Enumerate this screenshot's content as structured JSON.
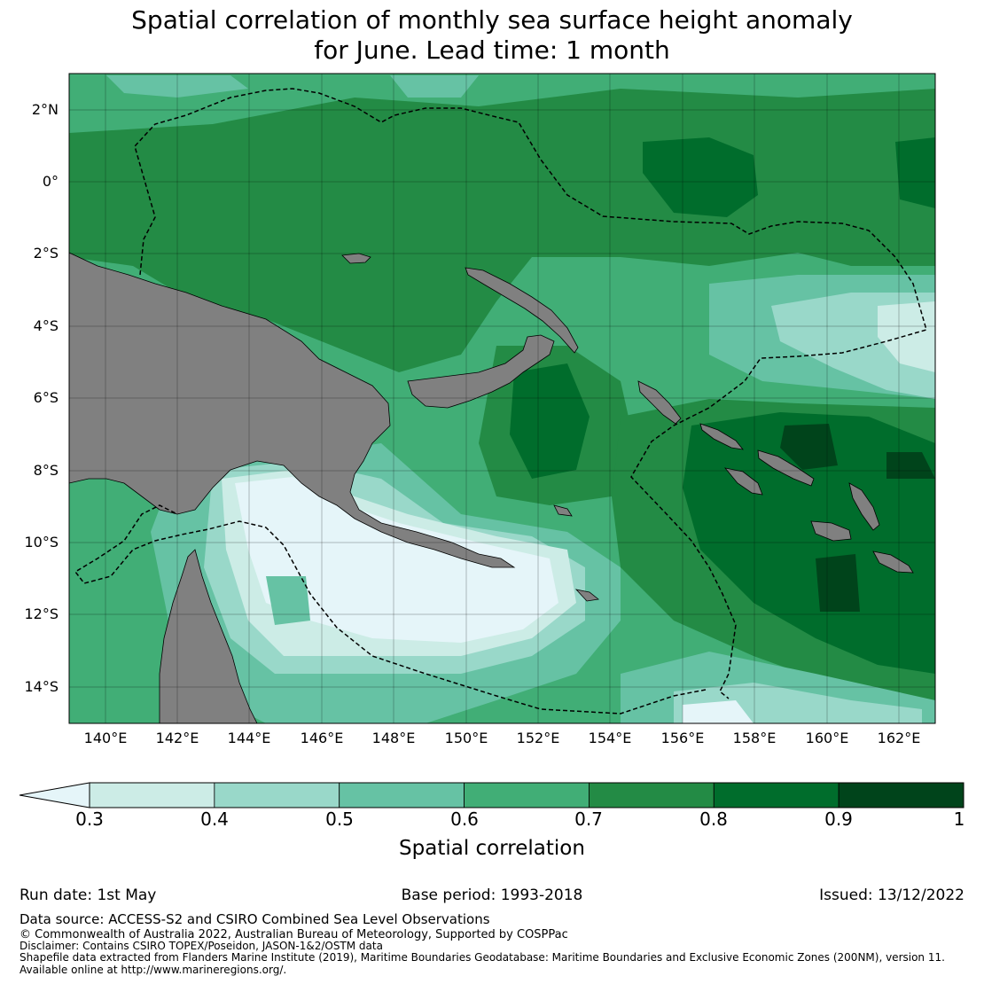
{
  "title": {
    "line1": "Spatial correlation of monthly sea surface height anomaly",
    "line2": "for June. Lead time: 1 month"
  },
  "map": {
    "lat_labels": [
      "2°N",
      "0°",
      "2°S",
      "4°S",
      "6°S",
      "8°S",
      "10°S",
      "12°S",
      "14°S"
    ],
    "lon_labels": [
      "140°E",
      "142°E",
      "144°E",
      "146°E",
      "148°E",
      "150°E",
      "152°E",
      "154°E",
      "156°E",
      "158°E",
      "160°E",
      "162°E"
    ],
    "lon_range": [
      139,
      163
    ],
    "lat_range": [
      -15,
      3
    ],
    "land_color": "#808080"
  },
  "colorbar": {
    "ticks": [
      "0.3",
      "0.4",
      "0.5",
      "0.6",
      "0.7",
      "0.8",
      "0.9",
      "1"
    ],
    "colors": [
      "#e5f5f9",
      "#ccece6",
      "#99d8c9",
      "#66c2a4",
      "#41ae76",
      "#238b45",
      "#006d2c",
      "#00441b"
    ],
    "label": "Spatial correlation"
  },
  "info": {
    "run_date": "Run date: 1st May",
    "base_period": "Base period: 1993-2018",
    "issued": "Issued: 13/12/2022"
  },
  "footer": {
    "data_source": "Data source: ACCESS-S2 and CSIRO Combined Sea Level Observations",
    "copyright": "© Commonwealth of Australia 2022, Australian Bureau of Meteorology, Supported by COSPPac",
    "disclaimer": "Disclaimer: Contains CSIRO TOPEX/Poseidon, JASON-1&2/OSTM data",
    "shapefile": "Shapefile data extracted from Flanders Marine Institute (2019), Maritime Boundaries Geodatabase: Maritime Boundaries and Exclusive Economic Zones (200NM), version 11.",
    "available": "Available online at http://www.marineregions.org/."
  }
}
